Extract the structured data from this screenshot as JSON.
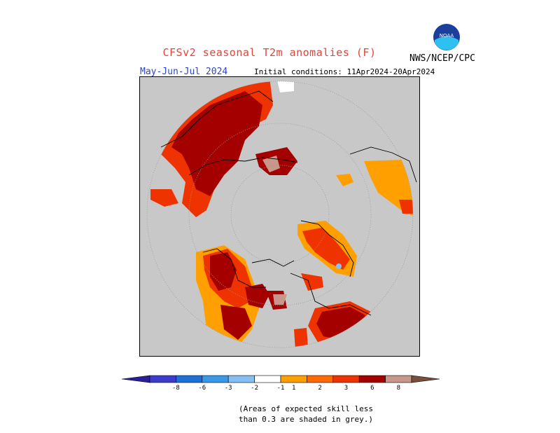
{
  "title": "CFSv2 seasonal T2m anomalies (F)",
  "period": "May-Jun-Jul 2024",
  "initial_conditions": "Initial conditions: 11Apr2024-20Apr2024",
  "organization": "NWS/NCEP/CPC",
  "logo_text": "NOAA",
  "colors": {
    "title": "#e0443a",
    "period": "#2b46c9",
    "no_skill_grey": "#c8c8c8"
  },
  "legend": {
    "bins": [
      {
        "color": "#2a1e99"
      },
      {
        "color": "#3b3bcc"
      },
      {
        "color": "#1f6fd9"
      },
      {
        "color": "#3a98ea"
      },
      {
        "color": "#86bff2"
      },
      {
        "color": "#ffffff"
      },
      {
        "color": "#ff9f00"
      },
      {
        "color": "#ff6a00"
      },
      {
        "color": "#ef3300"
      },
      {
        "color": "#a40000"
      },
      {
        "color": "#c8968a"
      },
      {
        "color": "#7a4e3a"
      }
    ],
    "ticks": [
      "-8",
      "-6",
      "-3",
      "-2",
      "-1",
      "1",
      "2",
      "3",
      "6",
      "8"
    ]
  },
  "note": {
    "line1": "(Areas of expected skill less",
    "line2": "than 0.3 are shaded in grey.)"
  }
}
